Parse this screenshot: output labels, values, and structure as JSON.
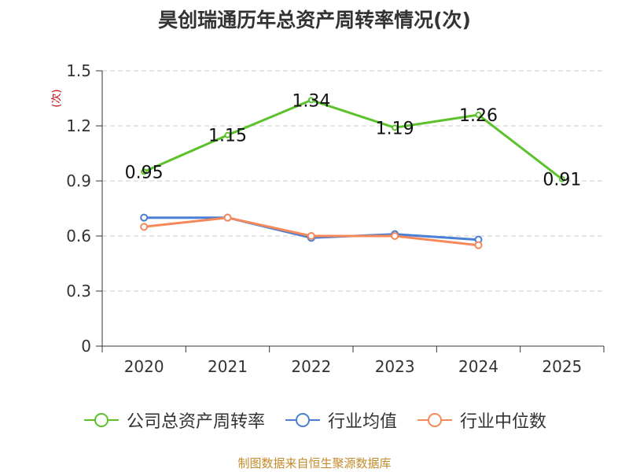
{
  "title": "昊创瑞通历年总资产周转率情况(次)",
  "source": "制图数据来自恒生聚源数据库",
  "colors": {
    "company": "#5cc22c",
    "industry_avg": "#4a7fd6",
    "industry_median": "#f5895a",
    "axis": "#333333",
    "grid": "#cccccc",
    "unit": "#cc0000",
    "source": "#c48a2c"
  },
  "chart_data": {
    "type": "line",
    "categories": [
      "2020",
      "2021",
      "2022",
      "2023",
      "2024",
      "2025"
    ],
    "y_unit": "(次)",
    "ylim": [
      0,
      1.5
    ],
    "yticks": [
      "0",
      "0.3",
      "0.6",
      "0.9",
      "1.2",
      "1.5"
    ],
    "grid": true,
    "legend_position": "bottom",
    "series": [
      {
        "name": "公司总资产周转率",
        "values": [
          0.95,
          1.15,
          1.34,
          1.19,
          1.26,
          0.91
        ],
        "labels": [
          "0.95",
          "1.15",
          "1.34",
          "1.19",
          "1.26",
          "0.91"
        ]
      },
      {
        "name": "行业均值",
        "values": [
          0.7,
          0.7,
          0.59,
          0.61,
          0.58,
          null
        ]
      },
      {
        "name": "行业中位数",
        "values": [
          0.65,
          0.7,
          0.6,
          0.6,
          0.55,
          null
        ]
      }
    ]
  }
}
